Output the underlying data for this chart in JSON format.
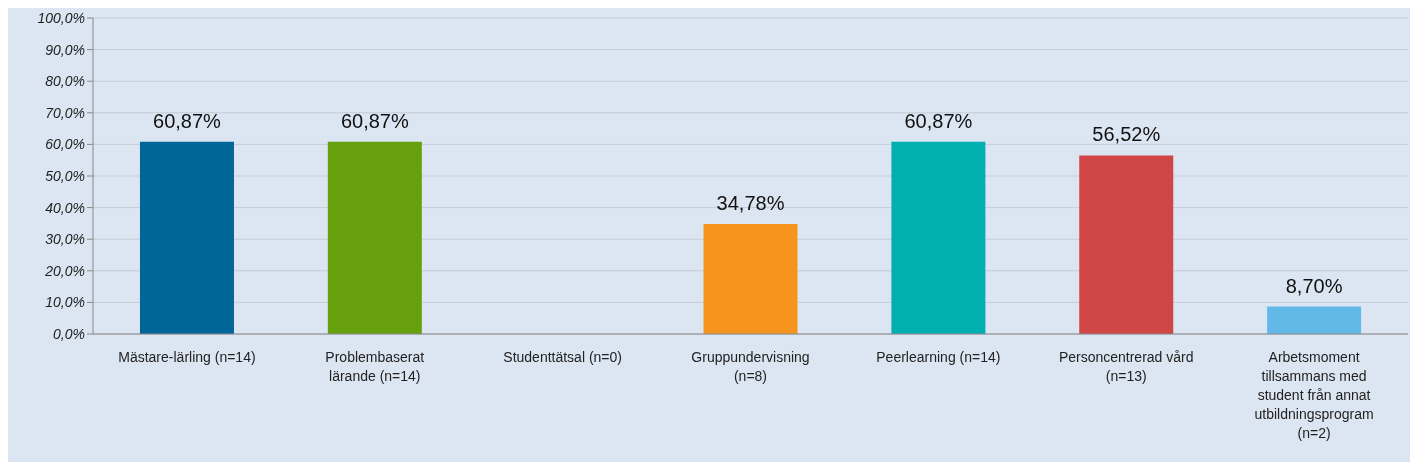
{
  "chart_data": {
    "type": "bar",
    "categories": [
      "Mästare-lärling (n=14)",
      "Problembaserat lärande (n=14)",
      "Studenttätsal  (n=0)",
      "Gruppundervisning (n=8)",
      "Peerlearning (n=14)",
      "Personcentrerad vård (n=13)",
      "Arbetsmoment tillsammans med student från annat utbildningsprogram (n=2)"
    ],
    "values": [
      60.87,
      60.87,
      0,
      34.78,
      60.87,
      56.52,
      8.7
    ],
    "colors": [
      "#006699",
      "#66a00c",
      null,
      "#f7941d",
      "#00b0b0",
      "#d04545",
      "#62b9e8"
    ],
    "value_labels": [
      "60,87%",
      "60,87%",
      null,
      "34,78%",
      "60,87%",
      "56,52%",
      "8,70%"
    ],
    "ylim": [
      0,
      100
    ],
    "yticks": [
      {
        "value": 0,
        "label": "0,0%"
      },
      {
        "value": 10,
        "label": "10,0%"
      },
      {
        "value": 20,
        "label": "20,0%"
      },
      {
        "value": 30,
        "label": "30,0%"
      },
      {
        "value": 40,
        "label": "40,0%"
      },
      {
        "value": 50,
        "label": "50,0%"
      },
      {
        "value": 60,
        "label": "60,0%"
      },
      {
        "value": 70,
        "label": "70,0%"
      },
      {
        "value": 80,
        "label": "80,0%"
      },
      {
        "value": 90,
        "label": "90,0%"
      },
      {
        "value": 100,
        "label": "100,0%"
      }
    ],
    "grid": "y"
  }
}
